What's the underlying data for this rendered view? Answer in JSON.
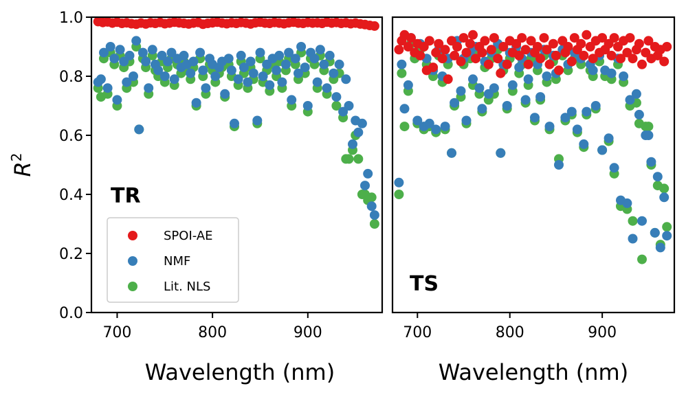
{
  "chart_data": [
    {
      "type": "scatter",
      "panel_label": "TR",
      "xlabel": "Wavelength (nm)",
      "ylabel": "R",
      "ylabel_superscript": "2",
      "xlim": [
        673,
        978
      ],
      "ylim": [
        0.0,
        1.0
      ],
      "xticks": [
        700,
        800,
        900
      ],
      "xtick_labels": [
        "700",
        "800",
        "900"
      ],
      "yticks": [
        0.0,
        0.2,
        0.4,
        0.6,
        0.8,
        1.0
      ],
      "ytick_labels": [
        "0.0",
        "0.2",
        "0.4",
        "0.6",
        "0.8",
        "1.0"
      ],
      "legend": {
        "placement": "lower-left",
        "entries": [
          "SPOI-AE",
          "NMF",
          "Lit. NLS"
        ]
      },
      "series": [
        {
          "name": "SPOI-AE",
          "color": "#e41a1c",
          "x": [
            680,
            685,
            690,
            695,
            700,
            705,
            710,
            715,
            720,
            725,
            730,
            735,
            740,
            745,
            750,
            755,
            760,
            765,
            770,
            775,
            780,
            785,
            790,
            795,
            800,
            805,
            810,
            815,
            820,
            825,
            830,
            835,
            840,
            845,
            850,
            855,
            860,
            865,
            870,
            875,
            880,
            885,
            890,
            895,
            900,
            905,
            910,
            915,
            920,
            925,
            930,
            935,
            940,
            945,
            950,
            955,
            960,
            965,
            970
          ],
          "y": [
            0.985,
            0.982,
            0.984,
            0.98,
            0.983,
            0.979,
            0.981,
            0.978,
            0.976,
            0.98,
            0.977,
            0.981,
            0.979,
            0.982,
            0.978,
            0.98,
            0.983,
            0.981,
            0.979,
            0.977,
            0.98,
            0.982,
            0.976,
            0.979,
            0.981,
            0.983,
            0.98,
            0.978,
            0.981,
            0.979,
            0.982,
            0.98,
            0.977,
            0.981,
            0.983,
            0.98,
            0.979,
            0.982,
            0.98,
            0.978,
            0.981,
            0.983,
            0.98,
            0.979,
            0.982,
            0.98,
            0.981,
            0.979,
            0.983,
            0.98,
            0.982,
            0.979,
            0.981,
            0.978,
            0.98,
            0.977,
            0.975,
            0.972,
            0.97
          ]
        },
        {
          "name": "NMF",
          "color": "#377eb8",
          "x": [
            680,
            683,
            686,
            690,
            693,
            697,
            700,
            703,
            707,
            710,
            713,
            717,
            720,
            723,
            727,
            730,
            733,
            737,
            740,
            743,
            747,
            750,
            753,
            757,
            760,
            763,
            767,
            770,
            773,
            777,
            780,
            783,
            787,
            790,
            793,
            797,
            800,
            803,
            807,
            810,
            813,
            817,
            820,
            823,
            827,
            830,
            833,
            837,
            840,
            843,
            847,
            850,
            853,
            857,
            860,
            863,
            867,
            870,
            873,
            877,
            880,
            883,
            887,
            890,
            893,
            897,
            900,
            903,
            907,
            910,
            913,
            917,
            920,
            923,
            927,
            930,
            933,
            937,
            940,
            943,
            947,
            950,
            953,
            957,
            960,
            963,
            967,
            970
          ],
          "y": [
            0.78,
            0.79,
            0.88,
            0.76,
            0.9,
            0.86,
            0.72,
            0.89,
            0.85,
            0.78,
            0.87,
            0.8,
            0.92,
            0.62,
            0.88,
            0.85,
            0.76,
            0.89,
            0.84,
            0.82,
            0.87,
            0.8,
            0.85,
            0.88,
            0.79,
            0.86,
            0.83,
            0.87,
            0.84,
            0.81,
            0.85,
            0.71,
            0.88,
            0.82,
            0.76,
            0.86,
            0.84,
            0.8,
            0.83,
            0.85,
            0.74,
            0.86,
            0.82,
            0.64,
            0.79,
            0.87,
            0.83,
            0.78,
            0.85,
            0.81,
            0.65,
            0.88,
            0.8,
            0.84,
            0.77,
            0.86,
            0.82,
            0.87,
            0.78,
            0.84,
            0.88,
            0.72,
            0.86,
            0.81,
            0.9,
            0.83,
            0.7,
            0.88,
            0.86,
            0.78,
            0.89,
            0.84,
            0.76,
            0.87,
            0.81,
            0.73,
            0.84,
            0.68,
            0.79,
            0.7,
            0.57,
            0.65,
            0.61,
            0.64,
            0.43,
            0.47,
            0.36,
            0.33
          ]
        },
        {
          "name": "Lit. NLS",
          "color": "#4daf4a",
          "x": [
            680,
            683,
            686,
            690,
            693,
            697,
            700,
            703,
            707,
            710,
            713,
            717,
            720,
            723,
            727,
            730,
            733,
            737,
            740,
            743,
            747,
            750,
            753,
            757,
            760,
            763,
            767,
            770,
            773,
            777,
            780,
            783,
            787,
            790,
            793,
            797,
            800,
            803,
            807,
            810,
            813,
            817,
            820,
            823,
            827,
            830,
            833,
            837,
            840,
            843,
            847,
            850,
            853,
            857,
            860,
            863,
            867,
            870,
            873,
            877,
            880,
            883,
            887,
            890,
            893,
            897,
            900,
            903,
            907,
            910,
            913,
            917,
            920,
            923,
            927,
            930,
            933,
            937,
            940,
            943,
            947,
            950,
            953,
            957,
            960,
            963,
            967,
            970
          ],
          "y": [
            0.76,
            0.73,
            0.86,
            0.74,
            0.88,
            0.84,
            0.7,
            0.87,
            0.83,
            0.76,
            0.85,
            0.78,
            0.9,
            0.62,
            0.86,
            0.83,
            0.74,
            0.87,
            0.82,
            0.8,
            0.85,
            0.78,
            0.83,
            0.86,
            0.77,
            0.84,
            0.81,
            0.85,
            0.82,
            0.79,
            0.83,
            0.7,
            0.86,
            0.8,
            0.74,
            0.84,
            0.82,
            0.78,
            0.81,
            0.83,
            0.73,
            0.84,
            0.8,
            0.63,
            0.77,
            0.85,
            0.81,
            0.76,
            0.83,
            0.79,
            0.64,
            0.86,
            0.78,
            0.82,
            0.75,
            0.84,
            0.8,
            0.85,
            0.76,
            0.82,
            0.86,
            0.7,
            0.84,
            0.79,
            0.88,
            0.81,
            0.68,
            0.86,
            0.84,
            0.76,
            0.87,
            0.82,
            0.74,
            0.85,
            0.79,
            0.7,
            0.81,
            0.66,
            0.52,
            0.52,
            0.55,
            0.6,
            0.52,
            0.4,
            0.4,
            0.38,
            0.39,
            0.3
          ]
        }
      ]
    },
    {
      "type": "scatter",
      "panel_label": "TS",
      "xlabel": "Wavelength (nm)",
      "xlim": [
        673,
        978
      ],
      "ylim": [
        0.0,
        1.0
      ],
      "xticks": [
        700,
        800,
        900
      ],
      "xtick_labels": [
        "700",
        "800",
        "900"
      ],
      "series": [
        {
          "name": "SPOI-AE",
          "color": "#e41a1c",
          "x": [
            680,
            683,
            686,
            690,
            693,
            697,
            700,
            703,
            707,
            710,
            713,
            717,
            720,
            723,
            727,
            730,
            733,
            737,
            740,
            743,
            747,
            750,
            753,
            757,
            760,
            763,
            767,
            770,
            773,
            777,
            780,
            783,
            787,
            790,
            793,
            797,
            800,
            803,
            807,
            810,
            813,
            817,
            820,
            823,
            827,
            830,
            833,
            837,
            840,
            843,
            847,
            850,
            853,
            857,
            860,
            863,
            867,
            870,
            873,
            877,
            880,
            883,
            887,
            890,
            893,
            897,
            900,
            903,
            907,
            910,
            913,
            917,
            920,
            923,
            927,
            930,
            933,
            937,
            940,
            943,
            947,
            950,
            953,
            957,
            960,
            963,
            967,
            970
          ],
          "y": [
            0.89,
            0.92,
            0.94,
            0.9,
            0.93,
            0.88,
            0.91,
            0.87,
            0.9,
            0.82,
            0.92,
            0.83,
            0.88,
            0.91,
            0.86,
            0.89,
            0.79,
            0.92,
            0.87,
            0.9,
            0.85,
            0.93,
            0.88,
            0.91,
            0.94,
            0.86,
            0.9,
            0.88,
            0.92,
            0.84,
            0.89,
            0.93,
            0.86,
            0.81,
            0.9,
            0.84,
            0.92,
            0.88,
            0.91,
            0.87,
            0.93,
            0.89,
            0.84,
            0.92,
            0.88,
            0.9,
            0.86,
            0.93,
            0.89,
            0.84,
            0.91,
            0.87,
            0.82,
            0.92,
            0.88,
            0.9,
            0.85,
            0.93,
            0.89,
            0.91,
            0.87,
            0.94,
            0.9,
            0.86,
            0.92,
            0.88,
            0.93,
            0.89,
            0.91,
            0.87,
            0.93,
            0.9,
            0.86,
            0.92,
            0.88,
            0.93,
            0.86,
            0.89,
            0.91,
            0.84,
            0.88,
            0.92,
            0.86,
            0.9,
            0.87,
            0.89,
            0.85,
            0.9
          ]
        },
        {
          "name": "NMF",
          "color": "#377eb8",
          "x": [
            680,
            683,
            686,
            690,
            693,
            697,
            700,
            703,
            707,
            710,
            713,
            717,
            720,
            723,
            727,
            730,
            733,
            737,
            740,
            743,
            747,
            750,
            753,
            757,
            760,
            763,
            767,
            770,
            773,
            777,
            780,
            783,
            787,
            790,
            793,
            797,
            800,
            803,
            807,
            810,
            813,
            817,
            820,
            823,
            827,
            830,
            833,
            837,
            840,
            843,
            847,
            850,
            853,
            857,
            860,
            863,
            867,
            870,
            873,
            877,
            880,
            883,
            887,
            890,
            893,
            897,
            900,
            903,
            907,
            910,
            913,
            917,
            920,
            923,
            927,
            930,
            933,
            937,
            940,
            943,
            947,
            950,
            953,
            957,
            960,
            963,
            967,
            970
          ],
          "y": [
            0.44,
            0.84,
            0.69,
            0.77,
            0.93,
            0.88,
            0.65,
            0.91,
            0.63,
            0.86,
            0.64,
            0.82,
            0.62,
            0.89,
            0.8,
            0.63,
            0.86,
            0.54,
            0.71,
            0.92,
            0.75,
            0.86,
            0.65,
            0.88,
            0.79,
            0.9,
            0.76,
            0.69,
            0.85,
            0.74,
            0.88,
            0.76,
            0.91,
            0.54,
            0.84,
            0.7,
            0.88,
            0.77,
            0.9,
            0.83,
            0.86,
            0.72,
            0.79,
            0.88,
            0.66,
            0.84,
            0.73,
            0.89,
            0.8,
            0.63,
            0.87,
            0.81,
            0.5,
            0.89,
            0.66,
            0.84,
            0.68,
            0.88,
            0.62,
            0.86,
            0.57,
            0.68,
            0.84,
            0.82,
            0.7,
            0.87,
            0.55,
            0.82,
            0.59,
            0.81,
            0.49,
            0.86,
            0.38,
            0.8,
            0.37,
            0.72,
            0.25,
            0.74,
            0.67,
            0.31,
            0.6,
            0.6,
            0.51,
            0.27,
            0.46,
            0.22,
            0.39,
            0.26
          ]
        },
        {
          "name": "Lit. NLS",
          "color": "#4daf4a",
          "x": [
            680,
            683,
            686,
            690,
            693,
            697,
            700,
            703,
            707,
            710,
            713,
            717,
            720,
            723,
            727,
            730,
            733,
            737,
            740,
            743,
            747,
            750,
            753,
            757,
            760,
            763,
            767,
            770,
            773,
            777,
            780,
            783,
            787,
            790,
            793,
            797,
            800,
            803,
            807,
            810,
            813,
            817,
            820,
            823,
            827,
            830,
            833,
            837,
            840,
            843,
            847,
            850,
            853,
            857,
            860,
            863,
            867,
            870,
            873,
            877,
            880,
            883,
            887,
            890,
            893,
            897,
            900,
            903,
            907,
            910,
            913,
            917,
            920,
            923,
            927,
            930,
            933,
            937,
            940,
            943,
            947,
            950,
            953,
            957,
            960,
            963,
            967,
            970
          ],
          "y": [
            0.4,
            0.81,
            0.63,
            0.75,
            0.91,
            0.86,
            0.64,
            0.89,
            0.62,
            0.84,
            0.63,
            0.8,
            0.61,
            0.87,
            0.78,
            0.62,
            0.84,
            0.54,
            0.7,
            0.9,
            0.73,
            0.84,
            0.64,
            0.86,
            0.77,
            0.88,
            0.74,
            0.68,
            0.83,
            0.72,
            0.86,
            0.74,
            0.89,
            0.54,
            0.82,
            0.69,
            0.86,
            0.75,
            0.88,
            0.81,
            0.84,
            0.71,
            0.77,
            0.86,
            0.65,
            0.82,
            0.72,
            0.87,
            0.78,
            0.62,
            0.85,
            0.79,
            0.52,
            0.87,
            0.65,
            0.82,
            0.67,
            0.86,
            0.61,
            0.84,
            0.56,
            0.67,
            0.82,
            0.8,
            0.69,
            0.85,
            0.55,
            0.8,
            0.58,
            0.79,
            0.47,
            0.84,
            0.36,
            0.78,
            0.35,
            0.7,
            0.31,
            0.71,
            0.64,
            0.18,
            0.63,
            0.63,
            0.5,
            0.27,
            0.43,
            0.23,
            0.42,
            0.29
          ]
        }
      ]
    }
  ]
}
